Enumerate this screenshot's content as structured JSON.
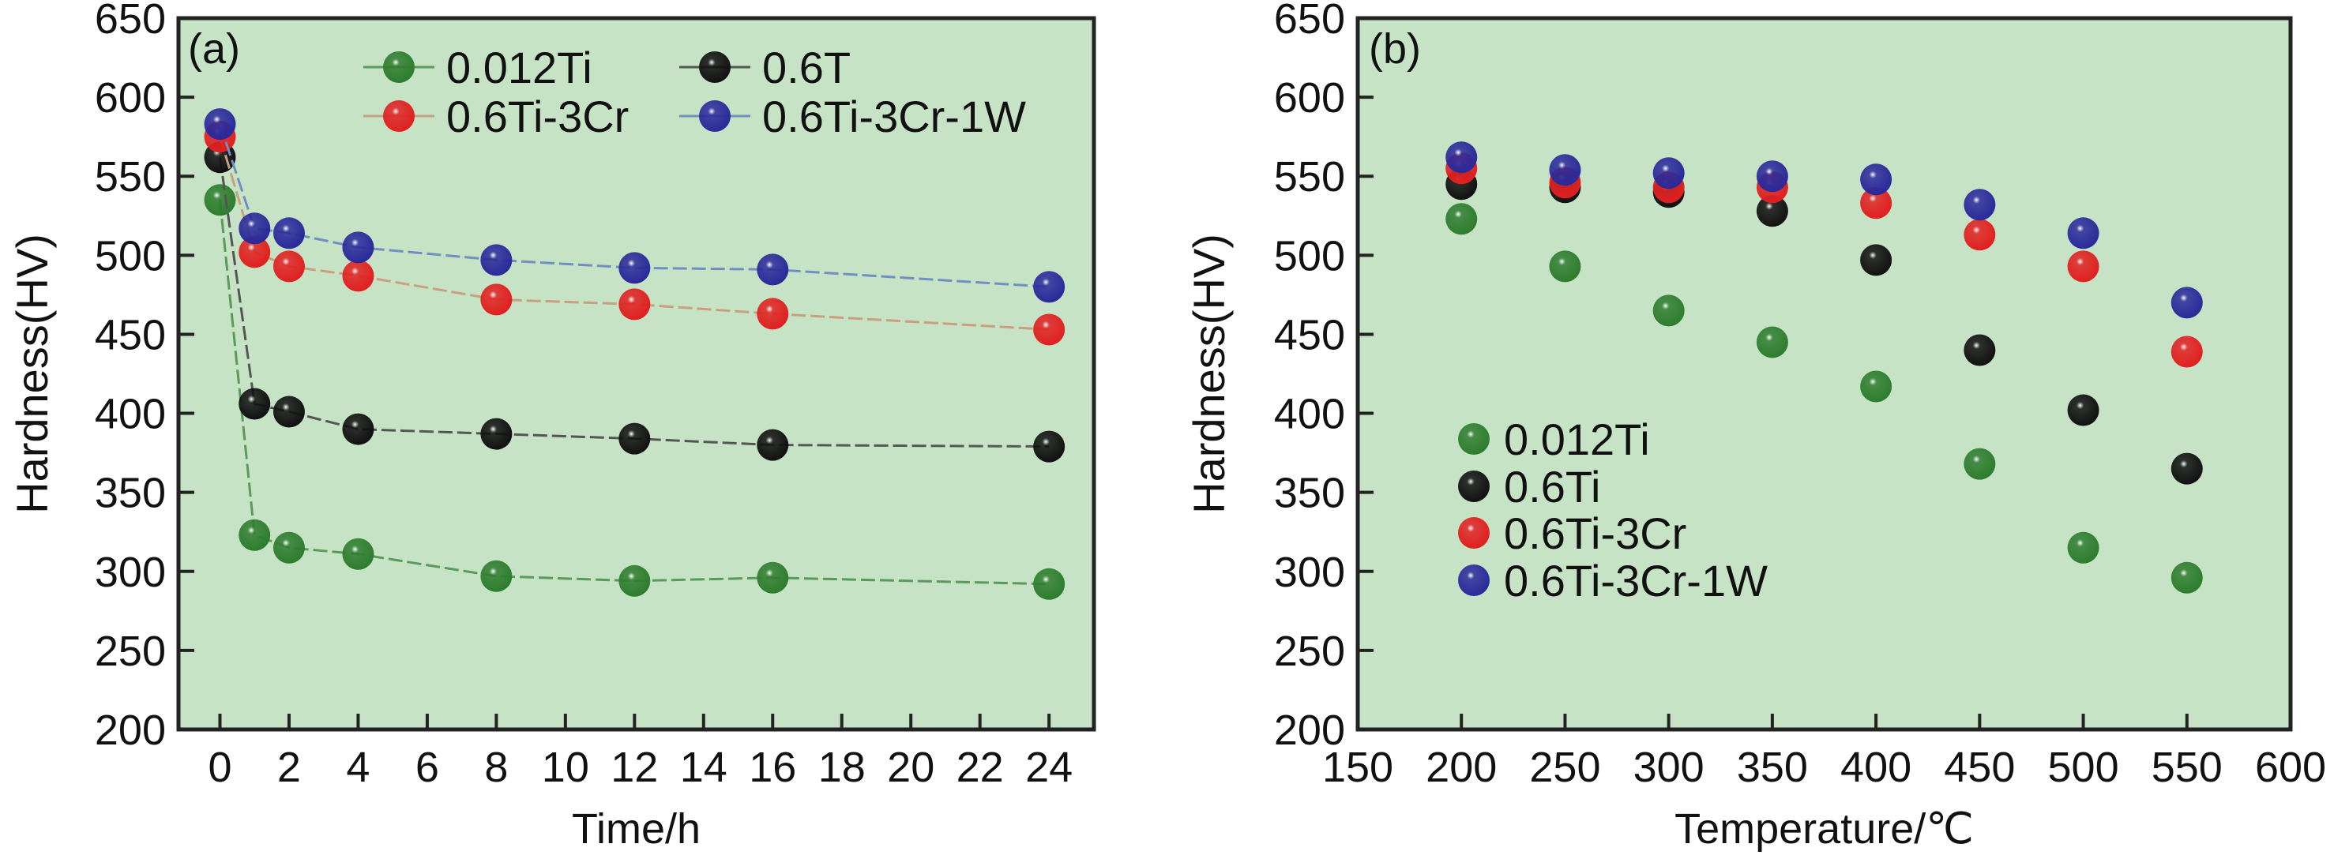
{
  "colors": {
    "plot_bg": "#c6e3c6",
    "axis": "#222222",
    "series": [
      "#2e7d2e",
      "#111111",
      "#e02020",
      "#2a2a9a"
    ],
    "lines": [
      "#5a9a5a",
      "#555555",
      "#c8a080",
      "#7090c0"
    ]
  },
  "chart_data": [
    {
      "type": "line",
      "panel_label": "(a)",
      "xlabel": "Time/h",
      "ylabel": "Hardness(HV)",
      "xlim": [
        -1.2,
        25.3
      ],
      "ylim": [
        200,
        650
      ],
      "xticks": [
        0,
        2,
        4,
        6,
        8,
        10,
        12,
        14,
        16,
        18,
        20,
        22,
        24
      ],
      "yticks": [
        200,
        250,
        300,
        350,
        400,
        450,
        500,
        550,
        600,
        650
      ],
      "legend_placement": "top",
      "x": [
        0,
        1,
        2,
        4,
        8,
        12,
        16,
        24
      ],
      "series": [
        {
          "name": "0.012Ti",
          "values": [
            535,
            323,
            315,
            311,
            297,
            294,
            296,
            292
          ]
        },
        {
          "name": "0.6T",
          "values": [
            562,
            406,
            401,
            390,
            387,
            384,
            380,
            379
          ]
        },
        {
          "name": "0.6Ti-3Cr",
          "values": [
            575,
            502,
            493,
            487,
            472,
            469,
            463,
            453
          ]
        },
        {
          "name": "0.6Ti-3Cr-1W",
          "values": [
            583,
            517,
            514,
            505,
            497,
            492,
            491,
            480
          ]
        }
      ]
    },
    {
      "type": "scatter",
      "panel_label": "(b)",
      "xlabel": "Temperature/℃",
      "ylabel": "Hardness(HV)",
      "xlim": [
        150,
        600
      ],
      "ylim": [
        200,
        650
      ],
      "xticks": [
        150,
        200,
        250,
        300,
        350,
        400,
        450,
        500,
        550,
        600
      ],
      "yticks": [
        200,
        250,
        300,
        350,
        400,
        450,
        500,
        550,
        600,
        650
      ],
      "legend_placement": "center-left",
      "x": [
        200,
        250,
        300,
        350,
        400,
        450,
        500,
        550
      ],
      "series": [
        {
          "name": "0.012Ti",
          "values": [
            523,
            493,
            465,
            445,
            417,
            368,
            315,
            296
          ]
        },
        {
          "name": "0.6Ti",
          "values": [
            545,
            543,
            540,
            528,
            497,
            440,
            402,
            365
          ]
        },
        {
          "name": "0.6Ti-3Cr",
          "values": [
            555,
            546,
            543,
            543,
            533,
            513,
            493,
            439
          ]
        },
        {
          "name": "0.6Ti-3Cr-1W",
          "values": [
            562,
            554,
            552,
            550,
            548,
            532,
            514,
            470
          ]
        }
      ]
    }
  ]
}
